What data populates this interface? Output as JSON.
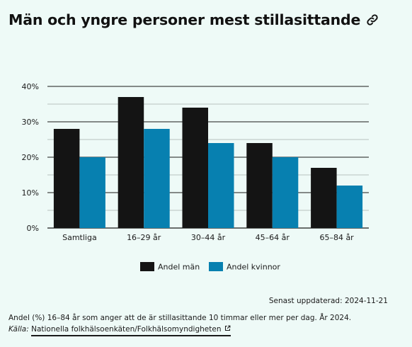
{
  "title": "Män och yngre personer mest stillasittande",
  "icons": {
    "title_link": "link-icon",
    "source_link": "external-link-icon"
  },
  "colors": {
    "men": "#141414",
    "women": "#0780b0",
    "background": "#eefaf7",
    "grid": "#1a1a1a"
  },
  "chart_data": {
    "type": "bar",
    "title": "Män och yngre personer mest stillasittande",
    "categories": [
      "Samtliga",
      "16–29 år",
      "30–44 år",
      "45–64 år",
      "65–84 år"
    ],
    "series": [
      {
        "name": "Andel män",
        "values": [
          28,
          37,
          34,
          24,
          17
        ],
        "color": "#141414"
      },
      {
        "name": "Andel kvinnor",
        "values": [
          20,
          28,
          24,
          20,
          12
        ],
        "color": "#0780b0"
      }
    ],
    "y_ticks": [
      0,
      10,
      20,
      30,
      40
    ],
    "y_tick_labels": [
      "0%",
      "10%",
      "20%",
      "30%",
      "40%"
    ],
    "ylim": [
      0,
      40
    ],
    "grid": true,
    "legend_position": "bottom",
    "xlabel": "",
    "ylabel": ""
  },
  "footer": {
    "updated": "Senast uppdaterad: 2024-11-21",
    "note": "Andel (%) 16–84 år som anger att de är stillasittande 10 timmar eller mer per dag. År 2024.",
    "source_label": "Källa:",
    "source_link": "Nationella folkhälsoenkäten/Folkhälsomyndigheten"
  }
}
